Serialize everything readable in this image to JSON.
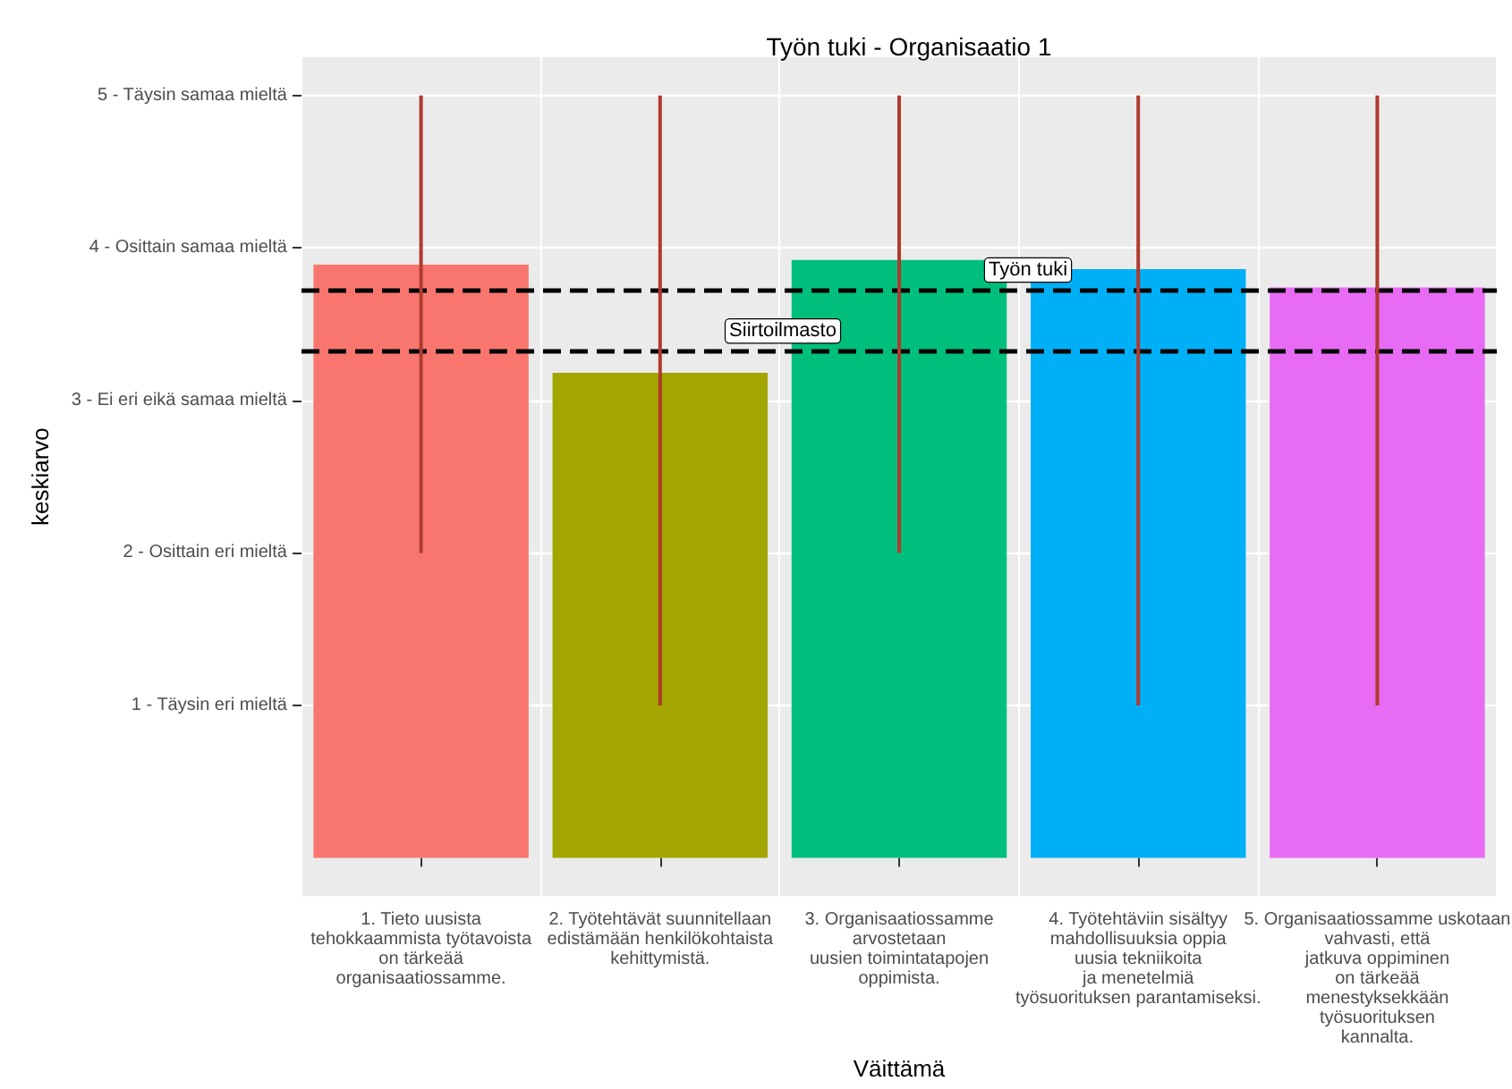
{
  "chart_data": {
    "type": "bar",
    "title": "Työn tuki - Organisaatio 1",
    "xlabel": "Väittämä",
    "ylabel": "keskiarvo",
    "categories": [
      "1. Tieto uusista\ntehokkaammista työtavoista\non tärkeää\norganisaatiossamme.",
      "2. Työtehtävät suunnitellaan\nedistämään henkilökohtaista\nkehittymistä.",
      "3. Organisaatiossamme\narvostetaan\nuusien toimintatapojen\noppimista.",
      "4. Työtehtäviin sisältyy\nmahdollisuuksia oppia\nuusia tekniikoita\nja menetelmiä\ntyösuorituksen parantamiseksi.",
      "5. Organisaatiossamme uskotaan\nvahvasti, että\njatkuva oppiminen\non tärkeää\nmenestyksekkään\ntyösuorituksen\nkannalta."
    ],
    "values": [
      3.89,
      3.18,
      3.92,
      3.86,
      3.74
    ],
    "colors": [
      "#f8766d",
      "#a3a500",
      "#00bf7d",
      "#00b0f6",
      "#e76bf3"
    ],
    "errors": [
      [
        2,
        5
      ],
      [
        1,
        5
      ],
      [
        2,
        5
      ],
      [
        1,
        5
      ],
      [
        1,
        5
      ]
    ],
    "ylim": [
      -0.25,
      5.25
    ],
    "yticks": [
      {
        "value": 1,
        "label": "1 - Täysin eri mieltä"
      },
      {
        "value": 2,
        "label": "2 - Osittain eri mieltä"
      },
      {
        "value": 3,
        "label": "3 - Ei eri eikä samaa mieltä"
      },
      {
        "value": 4,
        "label": "4 - Osittain samaa mieltä"
      },
      {
        "value": 5,
        "label": "5 - Täysin samaa mieltä"
      }
    ],
    "ref_lines": [
      {
        "axis": "y",
        "value": 3.72,
        "label": "Työn tuki",
        "color": "#000000",
        "line_style": "dashed"
      },
      {
        "axis": "y",
        "value": 3.32,
        "label": "Siirtoilmasto",
        "color": "#000000",
        "line_style": "dashed"
      }
    ],
    "grid": true
  }
}
